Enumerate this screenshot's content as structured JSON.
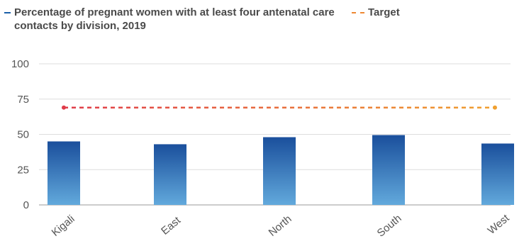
{
  "chart_data": {
    "type": "bar",
    "categories": [
      "Kigali",
      "East",
      "North",
      "South",
      "West"
    ],
    "series": [
      {
        "name": "Percentage of pregnant women with at least four antenatal care contacts by division, 2019",
        "type": "bar",
        "values": [
          45,
          43,
          48,
          49.5,
          43.5
        ],
        "color_top": "#1a4f9c",
        "color_bottom": "#62a9dc"
      },
      {
        "name": "Target",
        "type": "line",
        "values": [
          69,
          69,
          69,
          69,
          69
        ],
        "color_start": "#e03c4a",
        "color_end": "#f0a030",
        "style": "dashed"
      }
    ],
    "yticks": [
      "0",
      "25",
      "50",
      "75",
      "100"
    ],
    "ylim": [
      0,
      100
    ],
    "grid": true,
    "legend_position": "top-left",
    "xlabel": "",
    "ylabel": ""
  }
}
